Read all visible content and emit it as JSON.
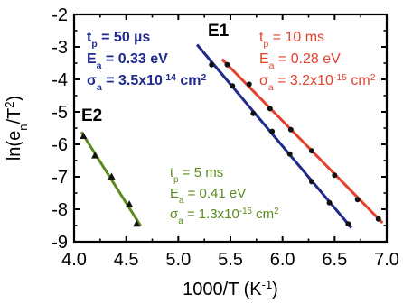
{
  "chart_data": {
    "type": "scatter",
    "title": "",
    "xlabel": {
      "base": "1000/T (K",
      "sup": "-1",
      "tail": ")"
    },
    "ylabel": {
      "base": "ln(e",
      "sub": "n",
      "mid": "/T",
      "sup": "2",
      "tail": ")"
    },
    "xlim": [
      4.0,
      7.0
    ],
    "ylim": [
      -9,
      -2
    ],
    "xticks": [
      4.0,
      4.5,
      5.0,
      5.5,
      6.0,
      6.5,
      7.0
    ],
    "xtick_labels": [
      "4.0",
      "4.5",
      "5.0",
      "5.5",
      "6.0",
      "6.5",
      "7.0"
    ],
    "yticks": [
      -2,
      -3,
      -4,
      -5,
      -6,
      -7,
      -8,
      -9
    ],
    "ytick_labels": [
      "-2",
      "-3",
      "-4",
      "-5",
      "-6",
      "-7",
      "-8",
      "-9"
    ],
    "grid": false,
    "series": [
      {
        "color": "#1f2a8c",
        "marker": "circle",
        "points": [
          [
            5.32,
            -3.55
          ],
          [
            5.52,
            -4.2
          ],
          [
            5.72,
            -5.05
          ],
          [
            5.9,
            -5.6
          ],
          [
            6.07,
            -6.3
          ],
          [
            6.28,
            -7.15
          ],
          [
            6.45,
            -7.8
          ],
          [
            6.63,
            -8.45
          ]
        ],
        "fit": [
          [
            5.18,
            -2.93
          ],
          [
            6.66,
            -8.57
          ]
        ],
        "label": "E1",
        "annotation": [
          {
            "main": "t",
            "sub": "p",
            "rest": " = 50 µs"
          },
          {
            "main": "E",
            "sub": "a",
            "rest": " = 0.33 eV"
          },
          {
            "main": "σ",
            "sub": "a",
            "rest": " = 3.5x10",
            "sup": "-14",
            "rest2": " cm",
            "sup2": "2"
          }
        ]
      },
      {
        "color": "#e2422d",
        "marker": "circle",
        "points": [
          [
            5.47,
            -3.55
          ],
          [
            5.68,
            -4.15
          ],
          [
            5.88,
            -4.9
          ],
          [
            6.08,
            -5.55
          ],
          [
            6.28,
            -6.2
          ],
          [
            6.5,
            -6.95
          ],
          [
            6.72,
            -7.7
          ],
          [
            6.92,
            -8.3
          ]
        ],
        "fit": [
          [
            5.42,
            -3.38
          ],
          [
            6.96,
            -8.42
          ]
        ],
        "annotation": [
          {
            "main": "t",
            "sub": "p",
            "rest": " = 10 ms"
          },
          {
            "main": "E",
            "sub": "a",
            "rest": " = 0.28 eV"
          },
          {
            "main": "σ",
            "sub": "a",
            "rest": " = 3.2x10",
            "sup": "-15",
            "rest2": " cm",
            "sup2": "2"
          }
        ]
      },
      {
        "color": "#5c8a1e",
        "marker": "triangle",
        "points": [
          [
            4.09,
            -5.75
          ],
          [
            4.2,
            -6.35
          ],
          [
            4.36,
            -7.0
          ],
          [
            4.53,
            -7.85
          ],
          [
            4.6,
            -8.45
          ]
        ],
        "fit": [
          [
            4.07,
            -5.62
          ],
          [
            4.64,
            -8.52
          ]
        ],
        "label": "E2",
        "annotation": [
          {
            "main": "t",
            "sub": "p",
            "rest": " = 5 ms"
          },
          {
            "main": "E",
            "sub": "a",
            "rest": " = 0.41 eV"
          },
          {
            "main": "σ",
            "sub": "a",
            "rest": " = 1.3x10",
            "sup": "-15",
            "rest2": " cm",
            "sup2": "2"
          }
        ]
      }
    ]
  }
}
